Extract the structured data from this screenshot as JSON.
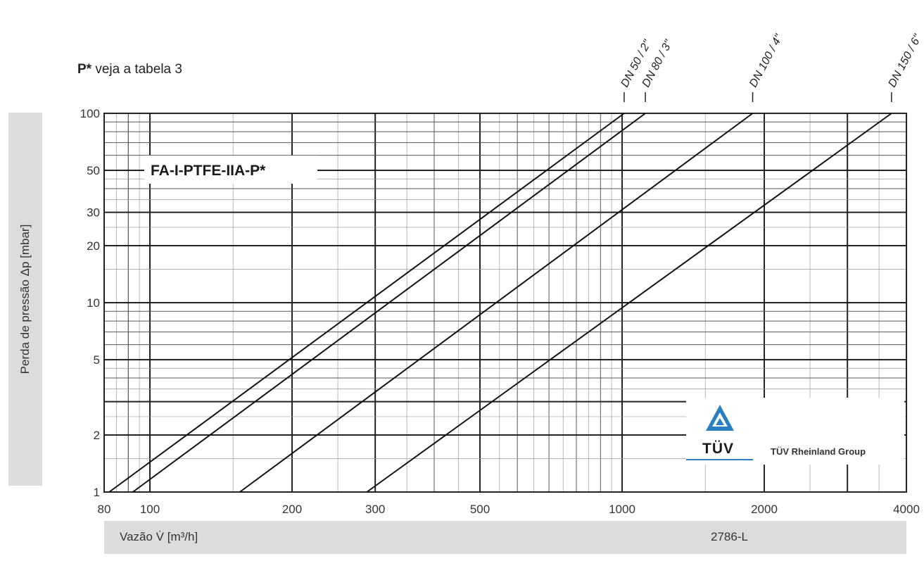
{
  "note": {
    "bold": "P*",
    "text": " veja a tabela 3"
  },
  "ylabel": "Perda de pressão Δp [mbar]",
  "xlabel": "Vazão V̇  [m³/h]",
  "doc_code": "2786-L",
  "logo": {
    "mark": "TÜV",
    "group": "TÜV Rheinland Group"
  },
  "chart_data": {
    "type": "line",
    "title": "FA-I-PTFE-IIA-P*",
    "xlabel": "Vazão V̇  [m³/h]",
    "ylabel": "Perda de pressão Δp [mbar]",
    "xscale": "log",
    "yscale": "log",
    "xlim": [
      80,
      4000
    ],
    "ylim": [
      1,
      100
    ],
    "x_ticks": [
      80,
      100,
      200,
      300,
      500,
      1000,
      2000,
      4000
    ],
    "y_ticks": [
      1,
      2,
      5,
      10,
      20,
      30,
      50,
      100
    ],
    "grid": true,
    "series": [
      {
        "name": "DN 50 / 2\"",
        "x": [
          82,
          1010
        ],
        "y": [
          1,
          100
        ]
      },
      {
        "name": "DN 80 / 3\"",
        "x": [
          92,
          1120
        ],
        "y": [
          1,
          100
        ]
      },
      {
        "name": "DN 100 / 4\"",
        "x": [
          155,
          1890
        ],
        "y": [
          1,
          100
        ]
      },
      {
        "name": "DN 150 / 6\"",
        "x": [
          288,
          3720
        ],
        "y": [
          1,
          100
        ]
      }
    ]
  }
}
